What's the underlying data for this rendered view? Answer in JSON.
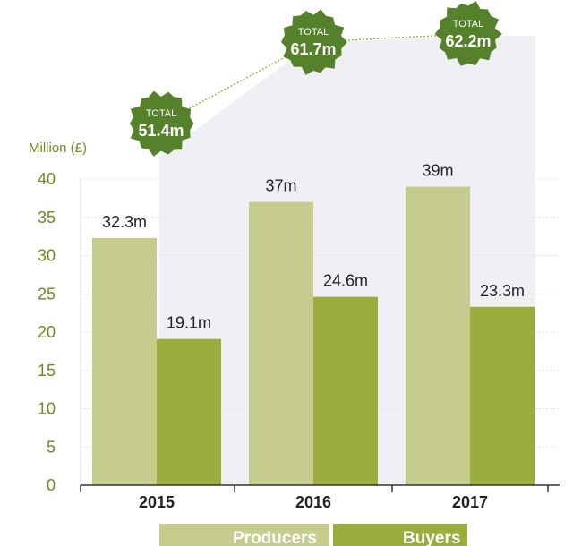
{
  "chart_data": {
    "type": "bar",
    "categories": [
      "2015",
      "2016",
      "2017"
    ],
    "series": [
      {
        "name": "Producers",
        "values": [
          32.3,
          37,
          39
        ],
        "labels": [
          "32.3m",
          "37m",
          "39m"
        ],
        "color": "#c5cc8e"
      },
      {
        "name": "Buyers",
        "values": [
          19.1,
          24.6,
          23.3
        ],
        "labels": [
          "19.1m",
          "24.6m",
          "23.3m"
        ],
        "color": "#98ad3b"
      }
    ],
    "totals": {
      "caption": "TOTAL",
      "values": [
        51.4,
        61.7,
        62.2
      ],
      "labels": [
        "51.4m",
        "61.7m",
        "62.2m"
      ],
      "color": "#55812a"
    },
    "ylabel": "Million (£)",
    "ylim": [
      0,
      40
    ],
    "yticks": [
      0,
      5,
      10,
      15,
      20,
      25,
      30,
      35,
      40
    ],
    "grid": true,
    "legend_position": "bottom",
    "colors": {
      "axis_text": "#6b8c1e",
      "grid": "#e3e3e3",
      "shade": "#eef0f3"
    }
  }
}
